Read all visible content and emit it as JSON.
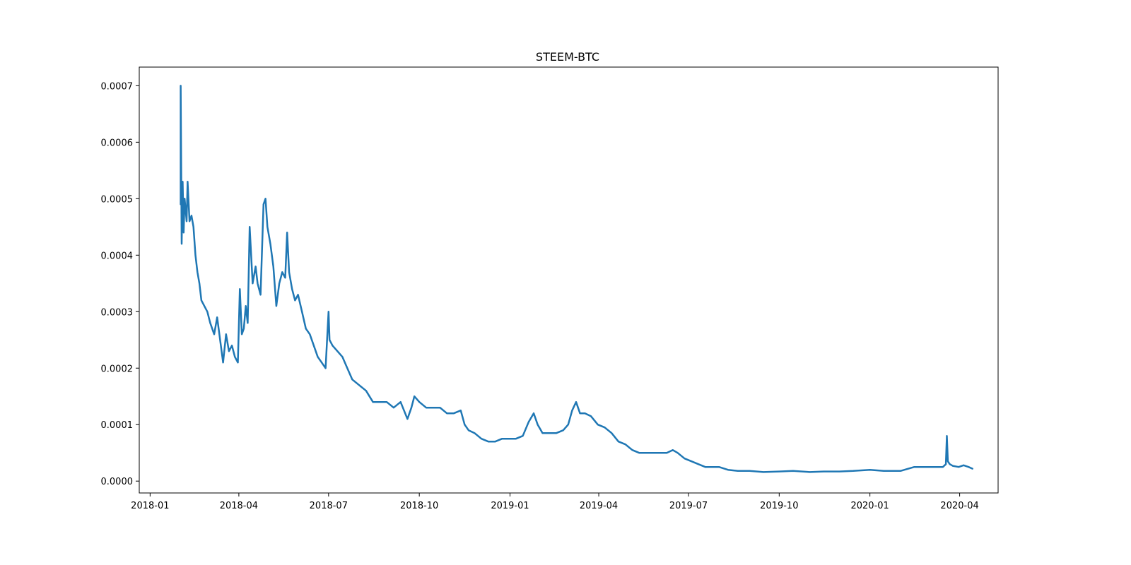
{
  "chart_data": {
    "type": "line",
    "title": "STEEM-BTC",
    "xlabel": "",
    "ylabel": "",
    "x_axis_type": "date",
    "xlim": [
      "2017-12-21",
      "2020-05-10"
    ],
    "ylim": [
      -2.1e-05,
      0.000733
    ],
    "x_ticks": [
      "2018-01",
      "2018-04",
      "2018-07",
      "2018-10",
      "2019-01",
      "2019-04",
      "2019-07",
      "2019-10",
      "2020-01",
      "2020-04"
    ],
    "y_ticks": [
      "0.0000",
      "0.0001",
      "0.0002",
      "0.0003",
      "0.0004",
      "0.0005",
      "0.0006",
      "0.0007"
    ],
    "y_tick_values": [
      0,
      0.0001,
      0.0002,
      0.0003,
      0.0004,
      0.0005,
      0.0006,
      0.0007
    ],
    "grid": false,
    "legend": "none",
    "colors": {
      "line": "#1f77b4"
    },
    "series": [
      {
        "x": [
          "2018-02-01",
          "2018-02-01",
          "2018-02-02",
          "2018-02-03",
          "2018-02-04",
          "2018-02-05",
          "2018-02-07",
          "2018-02-08",
          "2018-02-10",
          "2018-02-12",
          "2018-02-14",
          "2018-02-16",
          "2018-02-18",
          "2018-02-20",
          "2018-02-22",
          "2018-02-25",
          "2018-02-28",
          "2018-03-03",
          "2018-03-07",
          "2018-03-10",
          "2018-03-13",
          "2018-03-16",
          "2018-03-19",
          "2018-03-22",
          "2018-03-25",
          "2018-03-28",
          "2018-03-31",
          "2018-04-02",
          "2018-04-04",
          "2018-04-06",
          "2018-04-08",
          "2018-04-10",
          "2018-04-12",
          "2018-04-15",
          "2018-04-18",
          "2018-04-20",
          "2018-04-23",
          "2018-04-26",
          "2018-04-28",
          "2018-04-30",
          "2018-05-03",
          "2018-05-06",
          "2018-05-09",
          "2018-05-12",
          "2018-05-15",
          "2018-05-18",
          "2018-05-20",
          "2018-05-22",
          "2018-05-25",
          "2018-05-28",
          "2018-05-31",
          "2018-06-04",
          "2018-06-08",
          "2018-06-12",
          "2018-06-16",
          "2018-06-20",
          "2018-06-24",
          "2018-06-28",
          "2018-07-01",
          "2018-07-02",
          "2018-07-05",
          "2018-07-10",
          "2018-07-15",
          "2018-07-20",
          "2018-07-25",
          "2018-08-01",
          "2018-08-08",
          "2018-08-15",
          "2018-08-22",
          "2018-08-29",
          "2018-09-05",
          "2018-09-12",
          "2018-09-19",
          "2018-09-23",
          "2018-09-26",
          "2018-10-01",
          "2018-10-08",
          "2018-10-15",
          "2018-10-22",
          "2018-10-29",
          "2018-11-05",
          "2018-11-12",
          "2018-11-16",
          "2018-11-20",
          "2018-11-26",
          "2018-12-03",
          "2018-12-10",
          "2018-12-17",
          "2018-12-24",
          "2018-12-31",
          "2019-01-07",
          "2019-01-14",
          "2019-01-20",
          "2019-01-25",
          "2019-01-29",
          "2019-02-03",
          "2019-02-10",
          "2019-02-17",
          "2019-02-24",
          "2019-03-01",
          "2019-03-05",
          "2019-03-09",
          "2019-03-13",
          "2019-03-18",
          "2019-03-24",
          "2019-03-31",
          "2019-04-07",
          "2019-04-14",
          "2019-04-21",
          "2019-04-28",
          "2019-05-05",
          "2019-05-12",
          "2019-05-19",
          "2019-05-26",
          "2019-06-02",
          "2019-06-09",
          "2019-06-15",
          "2019-06-20",
          "2019-06-27",
          "2019-07-04",
          "2019-07-11",
          "2019-07-18",
          "2019-07-25",
          "2019-08-01",
          "2019-08-10",
          "2019-08-20",
          "2019-09-01",
          "2019-09-15",
          "2019-10-01",
          "2019-10-15",
          "2019-11-01",
          "2019-11-15",
          "2019-12-01",
          "2019-12-15",
          "2020-01-01",
          "2020-01-15",
          "2020-02-01",
          "2020-02-15",
          "2020-03-01",
          "2020-03-10",
          "2020-03-15",
          "2020-03-18",
          "2020-03-19",
          "2020-03-20",
          "2020-03-22",
          "2020-03-25",
          "2020-03-31",
          "2020-04-05",
          "2020-04-10",
          "2020-04-14"
        ],
        "y": [
          0.00049,
          0.0007,
          0.00042,
          0.00053,
          0.00044,
          0.0005,
          0.00046,
          0.00053,
          0.00046,
          0.00047,
          0.00045,
          0.0004,
          0.00037,
          0.00035,
          0.00032,
          0.00031,
          0.0003,
          0.00028,
          0.00026,
          0.00029,
          0.00025,
          0.00021,
          0.00026,
          0.00023,
          0.00024,
          0.00022,
          0.00021,
          0.00034,
          0.00026,
          0.00027,
          0.00031,
          0.00028,
          0.00045,
          0.00035,
          0.00038,
          0.00035,
          0.00033,
          0.00049,
          0.0005,
          0.00045,
          0.00042,
          0.00038,
          0.00031,
          0.00035,
          0.00037,
          0.00036,
          0.00044,
          0.00037,
          0.00034,
          0.00032,
          0.00033,
          0.0003,
          0.00027,
          0.00026,
          0.00024,
          0.00022,
          0.00021,
          0.0002,
          0.0003,
          0.00025,
          0.00024,
          0.00023,
          0.00022,
          0.0002,
          0.00018,
          0.00017,
          0.00016,
          0.00014,
          0.00014,
          0.00014,
          0.00013,
          0.00014,
          0.00011,
          0.00013,
          0.00015,
          0.00014,
          0.00013,
          0.00013,
          0.00013,
          0.00012,
          0.00012,
          0.000125,
          0.0001,
          9e-05,
          8.5e-05,
          7.5e-05,
          7e-05,
          7e-05,
          7.5e-05,
          7.5e-05,
          7.5e-05,
          8e-05,
          0.000105,
          0.00012,
          0.0001,
          8.5e-05,
          8.5e-05,
          8.5e-05,
          9e-05,
          0.0001,
          0.000125,
          0.00014,
          0.00012,
          0.00012,
          0.000115,
          0.0001,
          9.5e-05,
          8.5e-05,
          7e-05,
          6.5e-05,
          5.5e-05,
          5e-05,
          5e-05,
          5e-05,
          5e-05,
          5e-05,
          5.5e-05,
          5e-05,
          4e-05,
          3.5e-05,
          3e-05,
          2.5e-05,
          2.5e-05,
          2.5e-05,
          2e-05,
          1.8e-05,
          1.8e-05,
          1.6e-05,
          1.7e-05,
          1.8e-05,
          1.6e-05,
          1.7e-05,
          1.7e-05,
          1.8e-05,
          2e-05,
          1.8e-05,
          1.8e-05,
          2.5e-05,
          2.5e-05,
          2.5e-05,
          2.5e-05,
          3e-05,
          8e-05,
          3.5e-05,
          3e-05,
          2.7e-05,
          2.5e-05,
          2.8e-05,
          2.5e-05,
          2.2e-05
        ]
      }
    ]
  }
}
